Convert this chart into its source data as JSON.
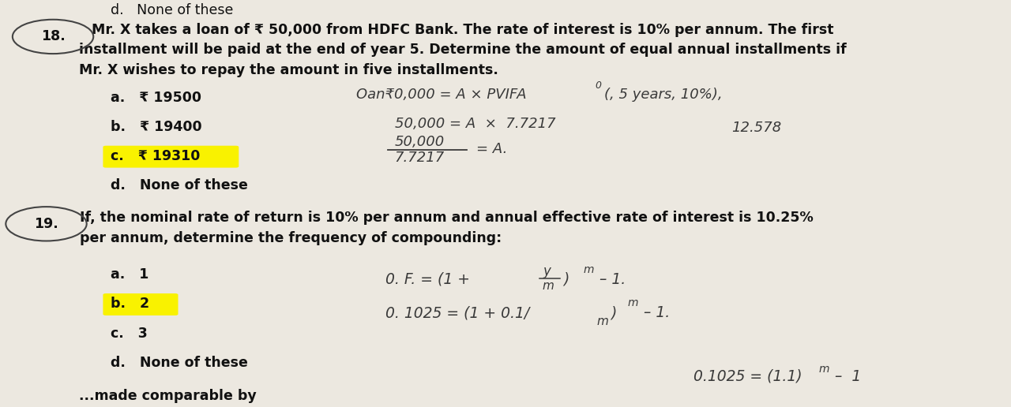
{
  "bg_color": "#ece8e0",
  "text_color": "#111111",
  "hw_color": "#3a3a3a",
  "highlight_yellow": "#f9f200",
  "q18_line1": "Mr. X takes a loan of ₹ 50,000 from HDFC Bank. The rate of interest is 10% per annum. The first",
  "q18_line2": "installment will be paid at the end of year 5. Determine the amount of equal annual installments if",
  "q18_line3": "Mr. X wishes to repay the amount in five installments.",
  "q18_a": "a.   ₹ 19500",
  "q18_b": "b.   ₹ 19400",
  "q18_c": "c.   ₹ 19310",
  "q18_d": "d.   None of these",
  "q19_line1": "If, the nominal rate of return is 10% per annum and annual effective rate of interest is 10.25%",
  "q19_line2": "per annum, determine the frequency of compounding:",
  "q19_a": "a.   1",
  "q19_b": "b.   2",
  "q19_c": "c.   3",
  "q19_d": "d.   None of these",
  "top_partial": "d.   None of these",
  "bottom_partial": "...made comparable by",
  "fs_q": 12.5,
  "fs_opt": 12.5,
  "fs_hw": 13.0,
  "lh": 0.072
}
